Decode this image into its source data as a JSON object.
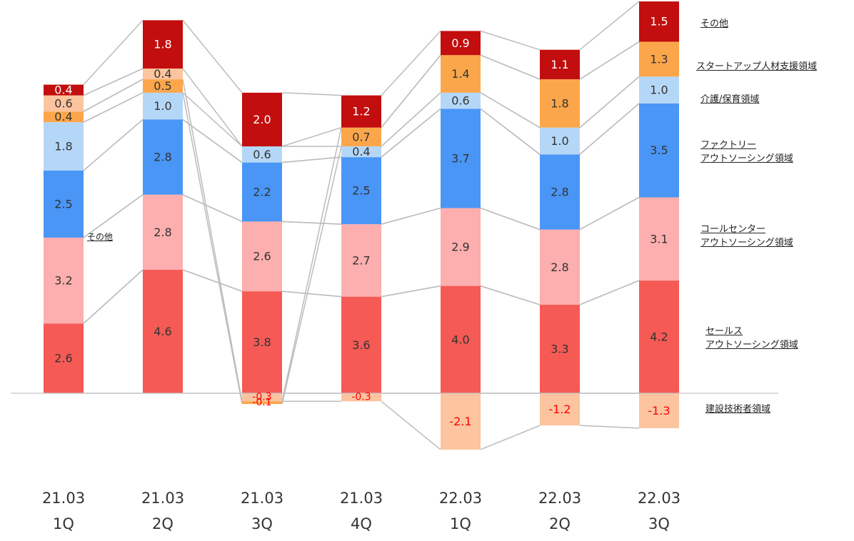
{
  "chart_data": {
    "type": "bar",
    "stacked": true,
    "categories": [
      "21.03\n1Q",
      "21.03\n2Q",
      "21.03\n3Q",
      "21.03\n4Q",
      "22.03\n1Q",
      "22.03\n2Q",
      "22.03\n3Q"
    ],
    "series": [
      {
        "name": "建設技術者領域",
        "color": "#FCC49F",
        "values": [
          null,
          null,
          -0.3,
          -0.3,
          -2.1,
          -1.2,
          -1.3
        ]
      },
      {
        "name": "セールス\nアウトソーシング領域",
        "color": "#F55A55",
        "values": [
          2.6,
          4.6,
          3.8,
          3.6,
          4.0,
          3.3,
          4.2
        ]
      },
      {
        "name": "コールセンター\nアウトソーシング領域",
        "color": "#FDAEAE",
        "values": [
          3.2,
          2.8,
          2.6,
          2.7,
          2.9,
          2.8,
          3.1
        ]
      },
      {
        "name": "ファクトリー\nアウトソーシング領域",
        "color": "#4A96F7",
        "values": [
          2.5,
          2.8,
          2.2,
          2.5,
          3.7,
          2.8,
          3.5
        ]
      },
      {
        "name": "介護/保育領域",
        "color": "#B5D7F7",
        "values": [
          1.8,
          1.0,
          0.6,
          0.4,
          0.6,
          1.0,
          1.0
        ]
      },
      {
        "name": "スタートアップ人材支援領域",
        "color": "#FCA64B",
        "values": [
          0.4,
          0.5,
          -0.1,
          0.7,
          1.4,
          1.8,
          1.3
        ]
      },
      {
        "name": "",
        "color": "#FCC49F",
        "values": [
          0.6,
          0.4,
          null,
          null,
          null,
          null,
          null
        ]
      },
      {
        "name": "その他",
        "color": "#C20E0E",
        "values": [
          0.4,
          1.8,
          2.0,
          1.2,
          0.9,
          1.1,
          1.5
        ]
      }
    ],
    "inner_annotation": "その他",
    "legend_position": "right",
    "grid": false,
    "ylim": [
      -2.1,
      14.4
    ],
    "xlabel": "",
    "ylabel": "",
    "title": ""
  }
}
